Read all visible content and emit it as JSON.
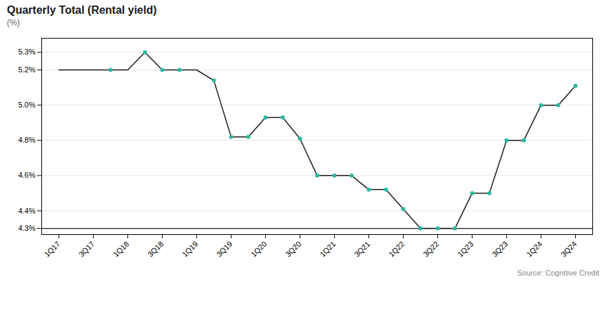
{
  "chart_data": {
    "type": "line",
    "title": "Quarterly Total (Rental yield)",
    "subtitle": "(%)",
    "source": "Source: Cognitive Credit",
    "xlim": [
      -1,
      31
    ],
    "xticks": [
      {
        "value": 0,
        "label": "1Q17"
      },
      {
        "value": 2,
        "label": "3Q17"
      },
      {
        "value": 4,
        "label": "1Q18"
      },
      {
        "value": 6,
        "label": "3Q18"
      },
      {
        "value": 8,
        "label": "1Q19"
      },
      {
        "value": 10,
        "label": "3Q19"
      },
      {
        "value": 12,
        "label": "1Q20"
      },
      {
        "value": 14,
        "label": "3Q20"
      },
      {
        "value": 16,
        "label": "1Q21"
      },
      {
        "value": 18,
        "label": "3Q21"
      },
      {
        "value": 20,
        "label": "1Q22"
      },
      {
        "value": 22,
        "label": "3Q22"
      },
      {
        "value": 24,
        "label": "1Q23"
      },
      {
        "value": 26,
        "label": "3Q23"
      },
      {
        "value": 28,
        "label": "1Q24"
      },
      {
        "value": 30,
        "label": "3Q24"
      }
    ],
    "ylim": [
      4.265,
      5.38
    ],
    "yticks": [
      {
        "value": 4.3,
        "label": "4.3%"
      },
      {
        "value": 4.4,
        "label": "4.4%"
      },
      {
        "value": 4.6,
        "label": "4.6%"
      },
      {
        "value": 4.8,
        "label": "4.8%"
      },
      {
        "value": 5.0,
        "label": "5.0%"
      },
      {
        "value": 5.2,
        "label": "5.2%"
      },
      {
        "value": 5.3,
        "label": "5.3%"
      }
    ],
    "grid": true,
    "hline": 4.3,
    "series": [
      {
        "type": "line",
        "color": "#1a1a1a",
        "x": [
          0,
          1,
          2,
          3,
          4,
          4.5,
          5,
          5.5,
          6,
          7,
          8,
          9,
          10,
          11,
          12,
          13,
          14,
          15,
          16,
          17,
          18,
          19,
          20,
          21,
          22,
          23,
          24,
          25,
          26,
          27,
          28,
          29,
          30
        ],
        "values": [
          5.2,
          5.2,
          5.2,
          5.2,
          5.2,
          5.25,
          5.3,
          5.25,
          5.2,
          5.2,
          5.2,
          5.14,
          4.82,
          4.82,
          4.93,
          4.93,
          4.81,
          4.6,
          4.6,
          4.6,
          4.52,
          4.52,
          4.41,
          4.3,
          4.3,
          4.3,
          4.5,
          4.5,
          4.8,
          4.8,
          5.0,
          5.0,
          5.11
        ]
      },
      {
        "type": "scatter",
        "color": "#2db8a0",
        "x": [
          3,
          5,
          6,
          7,
          9,
          10,
          11,
          12,
          13,
          14,
          15,
          16,
          17,
          18,
          19,
          20,
          21,
          22,
          23,
          24,
          25,
          26,
          27,
          28,
          29,
          30
        ],
        "values": [
          5.2,
          5.3,
          5.2,
          5.2,
          5.14,
          4.82,
          4.82,
          4.93,
          4.93,
          4.81,
          4.6,
          4.6,
          4.6,
          4.52,
          4.52,
          4.41,
          4.3,
          4.3,
          4.3,
          4.5,
          4.5,
          4.8,
          4.8,
          5.0,
          5.0,
          5.11
        ]
      }
    ]
  }
}
